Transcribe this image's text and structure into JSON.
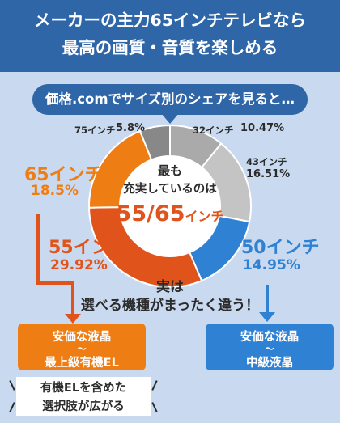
{
  "header": {
    "line1": "メーカーの主力65インチテレビなら",
    "line2": "最高の画質・音質を楽しめる"
  },
  "callout": "価格.comでサイズ別のシェアを見ると…",
  "chart_data": {
    "type": "pie",
    "style": "donut",
    "categories": [
      "32インチ",
      "43インチ",
      "50インチ",
      "55インチ",
      "65インチ",
      "75インチ"
    ],
    "values": [
      10.47,
      16.51,
      14.95,
      29.92,
      18.5,
      5.8
    ],
    "value_labels": [
      "10.47%",
      "16.51%",
      "14.95%",
      "29.92%",
      "18.5%",
      "5.8%"
    ],
    "colors": [
      "#aaaaaa",
      "#c4c4c4",
      "#2f81d3",
      "#e0541b",
      "#ee7d14",
      "#888888"
    ]
  },
  "center": {
    "line1": "最も",
    "line2": "充実しているのは",
    "line3": "55/65",
    "line3_suffix": "インチ"
  },
  "midnote": {
    "line1": "実は",
    "line2": "選べる機種がまったく違う！"
  },
  "orange_box": {
    "line1": "安価な液晶",
    "line2": "〜",
    "line3": "最上級有機EL"
  },
  "blue_box": {
    "line1": "安価な液晶",
    "line2": "〜",
    "line3": "中級液晶"
  },
  "note": {
    "line1": "有機ELを含めた",
    "line2": "選択肢が広がる"
  }
}
